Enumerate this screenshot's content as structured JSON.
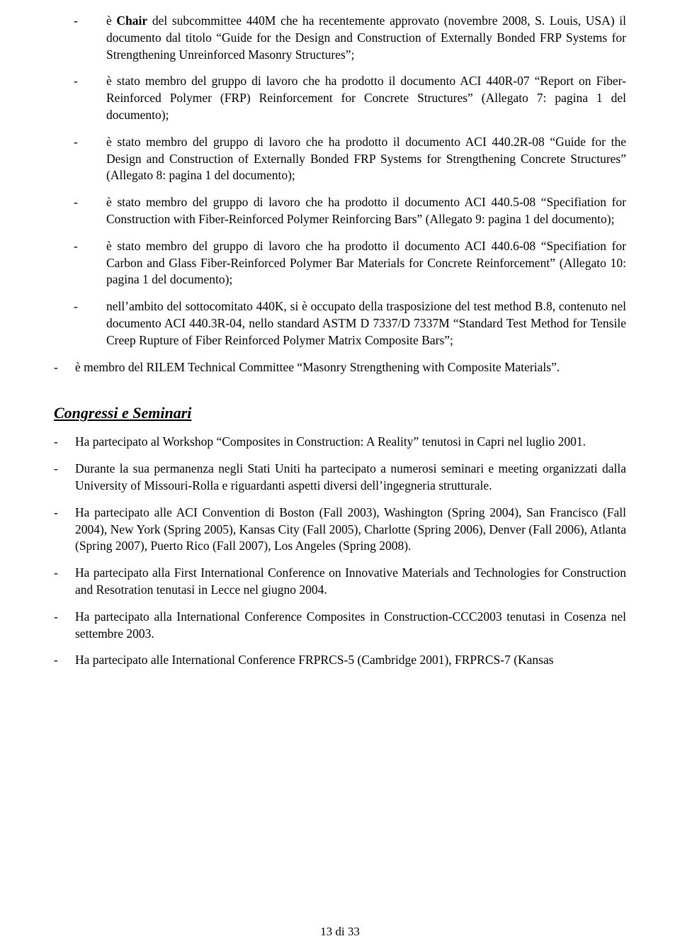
{
  "section1": [
    {
      "pre": "è ",
      "bold": "Chair",
      "post": " del subcommittee 440M che ha recentemente approvato (novembre 2008, S. Louis, USA) il documento dal titolo “Guide for the Design and Construction of Externally Bonded FRP Systems for Strengthening Unreinforced Masonry Structures”;"
    },
    {
      "text": "è stato membro del gruppo di lavoro che ha prodotto il documento ACI 440R-07 “Report on Fiber-Reinforced Polymer (FRP) Reinforcement for Concrete Structures” (Allegato 7: pagina 1 del documento);"
    },
    {
      "text": "è stato membro del gruppo di lavoro che ha prodotto il documento ACI 440.2R-08 “Guide for the Design and Construction of Externally Bonded FRP Systems for Strengthening Concrete Structures” (Allegato 8: pagina 1 del documento);"
    },
    {
      "text": "è stato membro del gruppo di lavoro che ha prodotto il documento ACI 440.5-08 “Specifiation for Construction with Fiber-Reinforced Polymer Reinforcing Bars” (Allegato 9: pagina 1 del documento);"
    },
    {
      "text": "è stato membro del gruppo di lavoro che ha prodotto il documento ACI 440.6-08 “Specifiation for Carbon and Glass Fiber-Reinforced Polymer Bar Materials for Concrete Reinforcement” (Allegato 10: pagina 1 del documento);"
    },
    {
      "text": "nell’ambito del sottocomitato 440K, si è occupato della trasposizione del test method B.8, contenuto nel documento ACI 440.3R-04, nello standard ASTM D 7337/D 7337M “Standard Test Method for Tensile Creep Rupture of Fiber Reinforced Polymer Matrix Composite Bars”;"
    }
  ],
  "section1b": [
    {
      "text": "è membro del RILEM Technical Committee “Masonry Strengthening with Composite Materials”."
    }
  ],
  "heading2": "Congressi e Seminari",
  "section2": [
    {
      "text": "Ha partecipato al Workshop “Composites in Construction: A Reality” tenutosi in Capri nel luglio 2001."
    },
    {
      "text": "Durante la sua permanenza negli Stati Uniti ha partecipato a numerosi seminari e meeting organizzati dalla University of Missouri-Rolla e riguardanti aspetti diversi dell’ingegneria strutturale."
    },
    {
      "text": "Ha partecipato alle ACI Convention di Boston (Fall 2003), Washington (Spring 2004), San Francisco (Fall 2004), New York (Spring 2005), Kansas City (Fall 2005), Charlotte (Spring 2006), Denver (Fall 2006), Atlanta (Spring 2007), Puerto Rico (Fall 2007), Los Angeles (Spring 2008)."
    },
    {
      "text": "Ha partecipato alla First International Conference on Innovative Materials and Technologies for Construction and Resotration tenutasi in Lecce nel giugno 2004."
    },
    {
      "text": "Ha partecipato alla International Conference Composites in Construction-CCC2003 tenutasi in Cosenza nel settembre 2003."
    },
    {
      "text": "Ha partecipato alle International Conference FRPRCS-5 (Cambridge 2001), FRPRCS-7 (Kansas"
    }
  ],
  "pagenum": "13 di 33"
}
